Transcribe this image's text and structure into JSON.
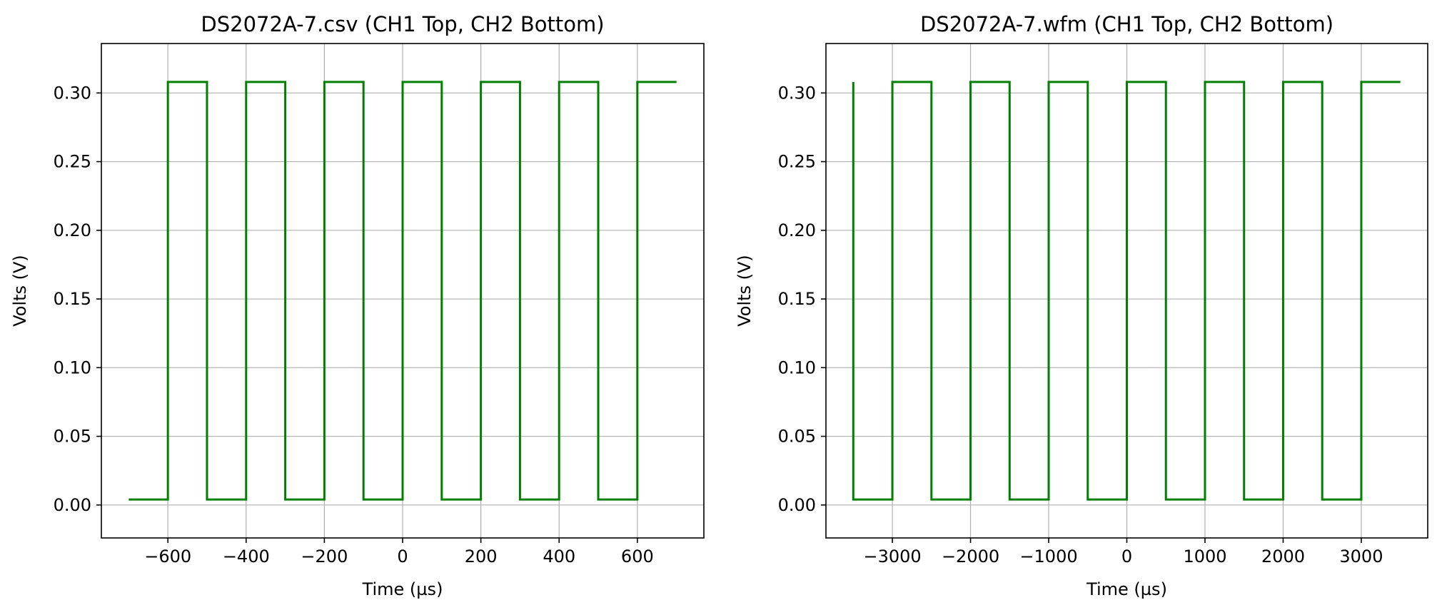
{
  "chart_data": [
    {
      "type": "line",
      "title": "DS2072A-7.csv (CH1 Top, CH2 Bottom)",
      "xlabel": "Time (µs)",
      "ylabel": "Volts (V)",
      "xlim": [
        -770,
        770
      ],
      "ylim": [
        -0.024,
        0.336
      ],
      "xticks": [
        -600,
        -400,
        -200,
        0,
        200,
        400,
        600
      ],
      "xtick_labels": [
        "−600",
        "−400",
        "−200",
        "0",
        "200",
        "400",
        "600"
      ],
      "yticks": [
        0.0,
        0.05,
        0.1,
        0.15,
        0.2,
        0.25,
        0.3
      ],
      "ytick_labels": [
        "0.00",
        "0.05",
        "0.10",
        "0.15",
        "0.20",
        "0.25",
        "0.30"
      ],
      "grid": true,
      "color": "#008000",
      "series": [
        {
          "x": [
            -700,
            -600,
            -600,
            -500,
            -500,
            -400,
            -400,
            -300,
            -300,
            -200,
            -200,
            -100,
            -100,
            0,
            0,
            100,
            100,
            200,
            200,
            300,
            300,
            400,
            400,
            500,
            500,
            600,
            600,
            700
          ],
          "y": [
            0.004,
            0.004,
            0.308,
            0.308,
            0.004,
            0.004,
            0.308,
            0.308,
            0.004,
            0.004,
            0.308,
            0.308,
            0.004,
            0.004,
            0.308,
            0.308,
            0.004,
            0.004,
            0.308,
            0.308,
            0.004,
            0.004,
            0.308,
            0.308,
            0.004,
            0.004,
            0.308,
            0.308
          ]
        }
      ]
    },
    {
      "type": "line",
      "title": "DS2072A-7.wfm (CH1 Top, CH2 Bottom)",
      "xlabel": "Time (µs)",
      "ylabel": "Volts (V)",
      "xlim": [
        -3850,
        3850
      ],
      "ylim": [
        -0.024,
        0.336
      ],
      "xticks": [
        -3000,
        -2000,
        -1000,
        0,
        1000,
        2000,
        3000
      ],
      "xtick_labels": [
        "−3000",
        "−2000",
        "−1000",
        "0",
        "1000",
        "2000",
        "3000"
      ],
      "yticks": [
        0.0,
        0.05,
        0.1,
        0.15,
        0.2,
        0.25,
        0.3
      ],
      "ytick_labels": [
        "0.00",
        "0.05",
        "0.10",
        "0.15",
        "0.20",
        "0.25",
        "0.30"
      ],
      "grid": true,
      "color": "#008000",
      "series": [
        {
          "x": [
            -3500,
            -3500,
            -3000,
            -3000,
            -2500,
            -2500,
            -2000,
            -2000,
            -1500,
            -1500,
            -1000,
            -1000,
            -500,
            -500,
            0,
            0,
            500,
            500,
            1000,
            1000,
            1500,
            1500,
            2000,
            2000,
            2500,
            2500,
            3000,
            3000,
            3500
          ],
          "y": [
            0.308,
            0.004,
            0.004,
            0.308,
            0.308,
            0.004,
            0.004,
            0.308,
            0.308,
            0.004,
            0.004,
            0.308,
            0.308,
            0.004,
            0.004,
            0.308,
            0.308,
            0.004,
            0.004,
            0.308,
            0.308,
            0.004,
            0.004,
            0.308,
            0.308,
            0.004,
            0.004,
            0.308,
            0.308
          ]
        }
      ]
    }
  ]
}
